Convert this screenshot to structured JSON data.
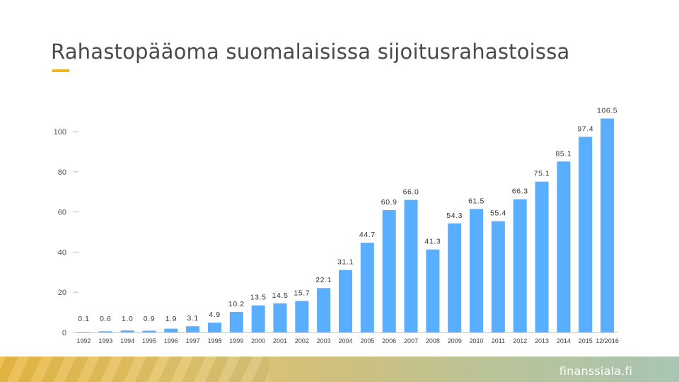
{
  "header": {
    "title": "Rahastopääoma suomalaisissa sijoitusrahastoissa"
  },
  "footer": {
    "brand": "finanssiala.fi"
  },
  "colors": {
    "bar": "#5aaeff",
    "accent": "#f2b51d",
    "text": "#4a4a4a",
    "axis": "#bfbfbf"
  },
  "chart_data": {
    "type": "bar",
    "title": "",
    "xlabel": "",
    "ylabel": "",
    "ylim": [
      0,
      110
    ],
    "yticks": [
      0,
      20,
      40,
      60,
      80,
      100
    ],
    "grid": false,
    "categories": [
      "1992",
      "1993",
      "1994",
      "1995",
      "1996",
      "1997",
      "1998",
      "1999",
      "2000",
      "2001",
      "2002",
      "2003",
      "2004",
      "2005",
      "2006",
      "2007",
      "2008",
      "2009",
      "2010",
      "2011",
      "2012",
      "2013",
      "2014",
      "2015",
      "12/2016"
    ],
    "values": [
      0.1,
      0.6,
      1.0,
      0.9,
      1.9,
      3.1,
      4.9,
      10.2,
      13.5,
      14.5,
      15.7,
      22.1,
      31.1,
      44.7,
      60.9,
      66.0,
      41.3,
      54.3,
      61.5,
      55.4,
      66.3,
      75.1,
      85.1,
      97.4,
      106.5
    ],
    "data_labels": [
      "0.1",
      "0.6",
      "1.0",
      "0.9",
      "1.9",
      "3.1",
      "4.9",
      "10.2",
      "13.5",
      "14.5",
      "15.7",
      "22.1",
      "31.1",
      "44.7",
      "60.9",
      "66.0",
      "41.3",
      "54.3",
      "61.5",
      "55.4",
      "66.3",
      "75.1",
      "85.1",
      "97.4",
      "106.5"
    ]
  }
}
